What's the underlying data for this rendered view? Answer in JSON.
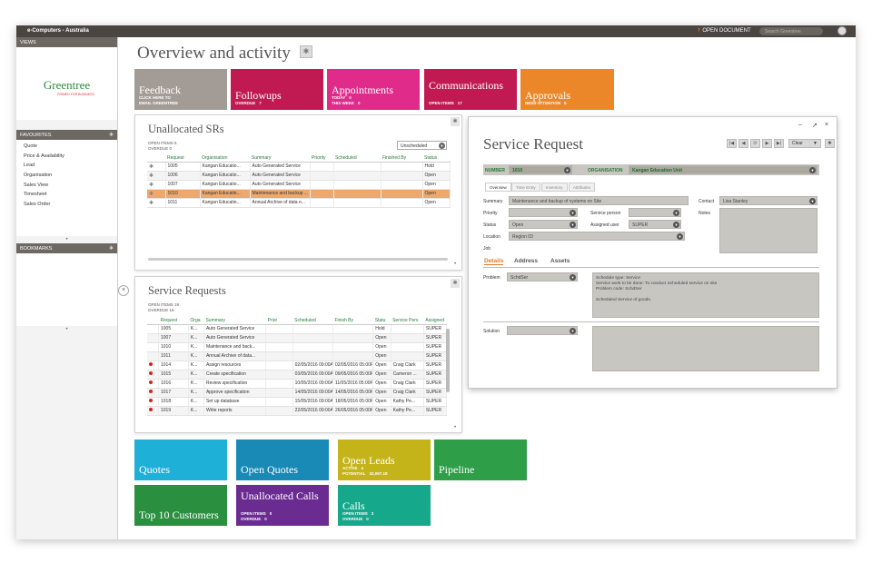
{
  "titlebar": {
    "title": "e-Computers - Australia",
    "open_document": "OPEN DOCUMENT",
    "search_placeholder": "Search Greentree"
  },
  "sidebar": {
    "views_label": "VIEWS",
    "logo_word": "Greentree",
    "logo_tag": "PRIMED FOR BUSINESS",
    "favourites_label": "FAVOURITES",
    "favourites": [
      "Quote",
      "Price & Availability",
      "Lead",
      "Organisation",
      "Sales View",
      "Timesheet",
      "Sales Order"
    ],
    "bookmarks_label": "BOOKMARKS",
    "more": "•"
  },
  "page": {
    "title": "Overview and activity"
  },
  "tiles_top": [
    {
      "name": "Feedback",
      "sub": [
        [
          "CLICK HERE TO",
          ""
        ],
        [
          "EMAIL GREENTREE",
          ""
        ]
      ],
      "color": "#a39c96"
    },
    {
      "name": "Followups",
      "sub": [
        [
          "OVERDUE",
          "7"
        ]
      ],
      "color": "#c11a52"
    },
    {
      "name": "Appointments",
      "sub": [
        [
          "TODAY",
          "0"
        ],
        [
          "THIS WEEK",
          "0"
        ]
      ],
      "color": "#e02b8a"
    },
    {
      "name": "Communications",
      "sub": [
        [
          "OPEN ITEMS",
          "17"
        ]
      ],
      "color": "#c11a52"
    },
    {
      "name": "Approvals",
      "sub": [
        [
          "NEED ATTENTION",
          "0"
        ]
      ],
      "color": "#ec8729"
    }
  ],
  "unallocated": {
    "title": "Unallocated SRs",
    "open_items_label": "OPEN ITEMS",
    "open_items": "5",
    "overdue_label": "OVERDUE",
    "overdue": "0",
    "filter": "Unscheduled",
    "columns": [
      "",
      "Request",
      "Organisation",
      "Summary",
      "Priority",
      "Scheduled",
      "Finished By",
      "Status"
    ],
    "rows": [
      [
        "1005",
        "Kangan Educatio...",
        "Auto Generated Service",
        "",
        "",
        "",
        "Hold"
      ],
      [
        "1006",
        "Kangan Educatio...",
        "Auto Generated Service",
        "",
        "",
        "",
        "Open"
      ],
      [
        "1007",
        "Kangan Educatio...",
        "Auto Generated Service",
        "",
        "",
        "",
        "Open"
      ],
      [
        "1010",
        "Kangan Educatio...",
        "Maintenance and backup ...",
        "",
        "",
        "",
        "Open"
      ],
      [
        "1011",
        "Kangan Educatio...",
        "Annual Archive of data o...",
        "",
        "",
        "",
        "Open"
      ]
    ],
    "selected_row": 3
  },
  "service_requests": {
    "title": "Service Requests",
    "open_items_label": "OPEN ITEMS",
    "open_items": "19",
    "overdue_label": "OVERDUE",
    "overdue": "15",
    "columns": [
      "",
      "Request",
      "Orga",
      "Summary",
      "Prior",
      "Scheduled",
      "Finish By",
      "Statu",
      "Service Pers",
      "Assigned"
    ],
    "rows": [
      [
        "",
        "1005",
        "K...",
        "Auto Generated Service",
        "",
        "",
        "",
        "Hold",
        "",
        "SUPER"
      ],
      [
        "",
        "1007",
        "K...",
        "Auto Generated Service",
        "",
        "",
        "",
        "Open",
        "",
        "SUPER"
      ],
      [
        "",
        "1010",
        "K...",
        "Maintenance and back...",
        "",
        "",
        "",
        "Open",
        "",
        "SUPER"
      ],
      [
        "",
        "1011",
        "K...",
        "Annual Archive of data...",
        "",
        "",
        "",
        "Open",
        "",
        "SUPER"
      ],
      [
        "red",
        "1014",
        "K...",
        "Assign resources",
        "",
        "02/05/2016 09:00AM",
        "02/05/2016 05:00PM",
        "Open",
        "Craig Clark",
        "SUPER"
      ],
      [
        "red",
        "1015",
        "K...",
        "Create specification",
        "",
        "03/05/2016 09:00AM",
        "09/05/2016 05:00PM",
        "Open",
        "Cameron ...",
        "SUPER"
      ],
      [
        "red",
        "1016",
        "K...",
        "Review specification",
        "",
        "10/05/2016 09:00AM",
        "11/05/2016 05:00PM",
        "Open",
        "Craig Clark",
        "SUPER"
      ],
      [
        "red",
        "1017",
        "K...",
        "Approve specification",
        "",
        "14/05/2016 09:00AM",
        "14/05/2016 05:00PM",
        "Open",
        "Craig Clark",
        "SUPER"
      ],
      [
        "red",
        "1018",
        "K...",
        "Set up database",
        "",
        "15/05/2016 09:00AM",
        "18/05/2016 05:00PM",
        "Open",
        "Kathy Pe...",
        "SUPER"
      ],
      [
        "red",
        "1019",
        "K...",
        "Write reports",
        "",
        "22/05/2016 09:00AM",
        "26/05/2016 05:00PM",
        "Open",
        "Kathy Pe...",
        "SUPER"
      ]
    ]
  },
  "sr_window": {
    "title": "Service Request",
    "clear_label": "Clear",
    "number_label": "NUMBER",
    "number": "1010",
    "org_label": "ORGANISATION",
    "org": "Kangan Education Unit",
    "tabs": [
      "Overview",
      "Time Entry",
      "Inventory",
      "Attributes"
    ],
    "summary_label": "Summary",
    "summary": "Maintenance and backup of systems on Site",
    "contact_label": "Contact",
    "contact": "Lisa Stanley",
    "priority_label": "Priority",
    "service_person_label": "Service person",
    "notes_label": "Notes",
    "status_label": "Status",
    "status": "Open",
    "assigned_label": "Assigned user",
    "assigned": "SUPER",
    "location_label": "Location",
    "location": "Region 03",
    "job_label": "Job",
    "detail_tabs": [
      "Details",
      "Address",
      "Assets"
    ],
    "problem_label": "Problem",
    "problem": "SchdSer",
    "problem_text": [
      "Schedule type: Service",
      "Service work to be done: To conduct Scheduled service on site",
      "Problem code: SchdSer",
      "",
      "Scheduled Service of goods."
    ],
    "solution_label": "Solution"
  },
  "tiles_bottom": [
    {
      "name": "Quotes",
      "sub": [],
      "color": "#1fb0d8"
    },
    {
      "name": "Open Quotes",
      "sub": [],
      "color": "#1989b5"
    },
    {
      "name": "Open Leads",
      "sub": [
        [
          "ACTIVE",
          "4"
        ],
        [
          "POTENTIAL",
          "32,097.18"
        ]
      ],
      "color": "#c4b419"
    },
    {
      "name": "Pipeline",
      "sub": [],
      "color": "#2e9e48"
    },
    {
      "name": "Top 10 Customers",
      "sub": [],
      "color": "#2a9040"
    },
    {
      "name": "Unallocated Calls",
      "sub": [
        [
          "OPEN ITEMS",
          "0"
        ],
        [
          "OVERDUE",
          "0"
        ]
      ],
      "color": "#6a2c91"
    },
    {
      "name": "Calls",
      "sub": [
        [
          "OPEN ITEMS",
          "3"
        ],
        [
          "OVERDUE",
          "0"
        ]
      ],
      "color": "#16a88a"
    }
  ]
}
